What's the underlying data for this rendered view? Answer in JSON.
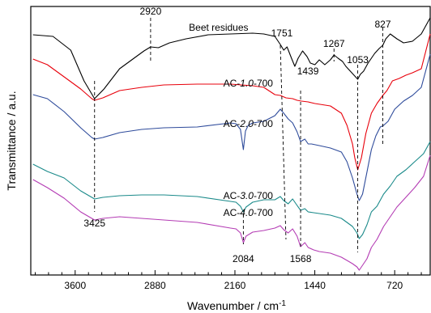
{
  "chart_data": {
    "type": "line",
    "xlabel": "Wavenumber / cm",
    "xlabel_superscript": "-1",
    "ylabel": "Transmittance / a.u.",
    "x_axis_reversed": true,
    "xlim": [
      4000,
      400
    ],
    "xticks": [
      3600,
      2880,
      2160,
      1440,
      720
    ],
    "x_tick_labels": [
      "3600",
      "2880",
      "2160",
      "1440",
      "720"
    ],
    "grid": false,
    "series": [
      {
        "label_parts": [
          "Beet residues"
        ],
        "color": "#000000",
        "points": [
          [
            3980,
            43
          ],
          [
            3800,
            45
          ],
          [
            3640,
            62
          ],
          [
            3520,
            100
          ],
          [
            3425,
            122
          ],
          [
            3340,
            110
          ],
          [
            3200,
            85
          ],
          [
            3050,
            70
          ],
          [
            2980,
            63
          ],
          [
            2920,
            58
          ],
          [
            2850,
            59
          ],
          [
            2750,
            53
          ],
          [
            2600,
            48
          ],
          [
            2400,
            43
          ],
          [
            2200,
            42
          ],
          [
            2000,
            41
          ],
          [
            1900,
            42
          ],
          [
            1800,
            45
          ],
          [
            1751,
            55
          ],
          [
            1720,
            62
          ],
          [
            1690,
            58
          ],
          [
            1650,
            72
          ],
          [
            1620,
            82
          ],
          [
            1590,
            72
          ],
          [
            1550,
            63
          ],
          [
            1510,
            70
          ],
          [
            1480,
            78
          ],
          [
            1439,
            80
          ],
          [
            1400,
            74
          ],
          [
            1350,
            80
          ],
          [
            1300,
            74
          ],
          [
            1267,
            68
          ],
          [
            1230,
            72
          ],
          [
            1190,
            76
          ],
          [
            1160,
            82
          ],
          [
            1120,
            88
          ],
          [
            1080,
            94
          ],
          [
            1053,
            98
          ],
          [
            1030,
            92
          ],
          [
            1000,
            88
          ],
          [
            960,
            78
          ],
          [
            900,
            66
          ],
          [
            860,
            60
          ],
          [
            827,
            56
          ],
          [
            800,
            48
          ],
          [
            760,
            42
          ],
          [
            700,
            48
          ],
          [
            640,
            53
          ],
          [
            560,
            51
          ],
          [
            480,
            42
          ],
          [
            400,
            22
          ]
        ]
      },
      {
        "label_parts": [
          "AC-",
          "1.0",
          "-700"
        ],
        "color": "#e8000b",
        "points": [
          [
            3980,
            73
          ],
          [
            3850,
            80
          ],
          [
            3700,
            95
          ],
          [
            3550,
            110
          ],
          [
            3450,
            122
          ],
          [
            3425,
            124
          ],
          [
            3350,
            121
          ],
          [
            3200,
            112
          ],
          [
            3000,
            108
          ],
          [
            2800,
            105
          ],
          [
            2500,
            104
          ],
          [
            2200,
            104
          ],
          [
            2000,
            106
          ],
          [
            1900,
            108
          ],
          [
            1800,
            117
          ],
          [
            1751,
            118
          ],
          [
            1700,
            121
          ],
          [
            1640,
            122
          ],
          [
            1600,
            124
          ],
          [
            1560,
            125
          ],
          [
            1500,
            126
          ],
          [
            1439,
            128
          ],
          [
            1300,
            131
          ],
          [
            1200,
            140
          ],
          [
            1150,
            155
          ],
          [
            1100,
            178
          ],
          [
            1080,
            195
          ],
          [
            1053,
            210
          ],
          [
            1020,
            195
          ],
          [
            980,
            165
          ],
          [
            930,
            140
          ],
          [
            880,
            128
          ],
          [
            827,
            118
          ],
          [
            790,
            112
          ],
          [
            740,
            100
          ],
          [
            680,
            97
          ],
          [
            620,
            93
          ],
          [
            560,
            90
          ],
          [
            480,
            85
          ],
          [
            400,
            42
          ]
        ]
      },
      {
        "label_parts": [
          "AC-",
          "2.0",
          "-700"
        ],
        "color": "#2e4b9b",
        "points": [
          [
            3980,
            117
          ],
          [
            3850,
            122
          ],
          [
            3700,
            138
          ],
          [
            3550,
            158
          ],
          [
            3450,
            170
          ],
          [
            3425,
            172
          ],
          [
            3350,
            170
          ],
          [
            3200,
            164
          ],
          [
            3000,
            160
          ],
          [
            2800,
            158
          ],
          [
            2500,
            157
          ],
          [
            2200,
            152
          ],
          [
            2150,
            153
          ],
          [
            2110,
            160
          ],
          [
            2084,
            185
          ],
          [
            2065,
            162
          ],
          [
            2040,
            155
          ],
          [
            2000,
            152
          ],
          [
            1900,
            150
          ],
          [
            1800,
            143
          ],
          [
            1751,
            135
          ],
          [
            1720,
            140
          ],
          [
            1680,
            147
          ],
          [
            1640,
            152
          ],
          [
            1600,
            163
          ],
          [
            1568,
            175
          ],
          [
            1530,
            172
          ],
          [
            1500,
            178
          ],
          [
            1470,
            178
          ],
          [
            1400,
            180
          ],
          [
            1300,
            183
          ],
          [
            1200,
            188
          ],
          [
            1150,
            200
          ],
          [
            1100,
            220
          ],
          [
            1060,
            240
          ],
          [
            1040,
            248
          ],
          [
            1010,
            240
          ],
          [
            970,
            213
          ],
          [
            930,
            185
          ],
          [
            890,
            168
          ],
          [
            850,
            157
          ],
          [
            820,
            155
          ],
          [
            780,
            150
          ],
          [
            720,
            135
          ],
          [
            640,
            125
          ],
          [
            560,
            118
          ],
          [
            480,
            108
          ],
          [
            400,
            67
          ]
        ]
      },
      {
        "label_parts": [
          "AC-",
          "3.0",
          "-700"
        ],
        "color": "#1a8a8a",
        "points": [
          [
            3980,
            203
          ],
          [
            3850,
            212
          ],
          [
            3700,
            220
          ],
          [
            3550,
            236
          ],
          [
            3450,
            244
          ],
          [
            3425,
            246
          ],
          [
            3350,
            244
          ],
          [
            3200,
            242
          ],
          [
            3000,
            241
          ],
          [
            2800,
            241
          ],
          [
            2500,
            243
          ],
          [
            2200,
            249
          ],
          [
            2150,
            250
          ],
          [
            2110,
            255
          ],
          [
            2084,
            262
          ],
          [
            2060,
            256
          ],
          [
            2000,
            250
          ],
          [
            1900,
            247
          ],
          [
            1800,
            247
          ],
          [
            1751,
            243
          ],
          [
            1720,
            248
          ],
          [
            1680,
            252
          ],
          [
            1640,
            246
          ],
          [
            1600,
            254
          ],
          [
            1568,
            260
          ],
          [
            1530,
            258
          ],
          [
            1500,
            262
          ],
          [
            1450,
            263
          ],
          [
            1400,
            264
          ],
          [
            1300,
            266
          ],
          [
            1200,
            270
          ],
          [
            1150,
            275
          ],
          [
            1100,
            280
          ],
          [
            1060,
            288
          ],
          [
            1040,
            295
          ],
          [
            1010,
            290
          ],
          [
            970,
            278
          ],
          [
            930,
            262
          ],
          [
            880,
            255
          ],
          [
            820,
            240
          ],
          [
            760,
            230
          ],
          [
            700,
            218
          ],
          [
            620,
            210
          ],
          [
            540,
            200
          ],
          [
            460,
            190
          ],
          [
            400,
            175
          ]
        ]
      },
      {
        "label_parts": [
          "AC-",
          "4.0",
          "-700"
        ],
        "color": "#b43cb4",
        "points": [
          [
            3980,
            222
          ],
          [
            3850,
            232
          ],
          [
            3700,
            245
          ],
          [
            3550,
            262
          ],
          [
            3450,
            270
          ],
          [
            3425,
            272
          ],
          [
            3350,
            270
          ],
          [
            3200,
            268
          ],
          [
            3000,
            270
          ],
          [
            2800,
            272
          ],
          [
            2500,
            275
          ],
          [
            2200,
            282
          ],
          [
            2150,
            283
          ],
          [
            2110,
            288
          ],
          [
            2084,
            300
          ],
          [
            2060,
            292
          ],
          [
            2000,
            287
          ],
          [
            1900,
            285
          ],
          [
            1800,
            282
          ],
          [
            1751,
            279
          ],
          [
            1720,
            284
          ],
          [
            1680,
            288
          ],
          [
            1640,
            283
          ],
          [
            1600,
            292
          ],
          [
            1568,
            305
          ],
          [
            1530,
            300
          ],
          [
            1500,
            306
          ],
          [
            1450,
            309
          ],
          [
            1400,
            311
          ],
          [
            1300,
            313
          ],
          [
            1200,
            318
          ],
          [
            1150,
            322
          ],
          [
            1100,
            326
          ],
          [
            1060,
            330
          ],
          [
            1040,
            334
          ],
          [
            1010,
            328
          ],
          [
            970,
            320
          ],
          [
            930,
            306
          ],
          [
            880,
            296
          ],
          [
            820,
            280
          ],
          [
            760,
            268
          ],
          [
            700,
            256
          ],
          [
            620,
            244
          ],
          [
            540,
            232
          ],
          [
            460,
            218
          ],
          [
            400,
            192
          ]
        ]
      }
    ],
    "peak_annotations": [
      {
        "label": "3425",
        "x": 3425,
        "label_anchor": "below"
      },
      {
        "label": "2920",
        "x": 2920,
        "label_anchor": "above"
      },
      {
        "label": "2084",
        "x": 2084,
        "label_anchor": "below"
      },
      {
        "label": "1751",
        "x": 1751,
        "label_anchor": "above"
      },
      {
        "label": "1568",
        "x": 1568,
        "label_anchor": "below"
      },
      {
        "label": "1439",
        "x": 1439,
        "label_anchor": "below-right"
      },
      {
        "label": "1267",
        "x": 1267,
        "label_anchor": "above"
      },
      {
        "label": "1053",
        "x": 1053,
        "label_anchor": "below"
      },
      {
        "label": "827",
        "x": 827,
        "label_anchor": "above"
      }
    ]
  }
}
